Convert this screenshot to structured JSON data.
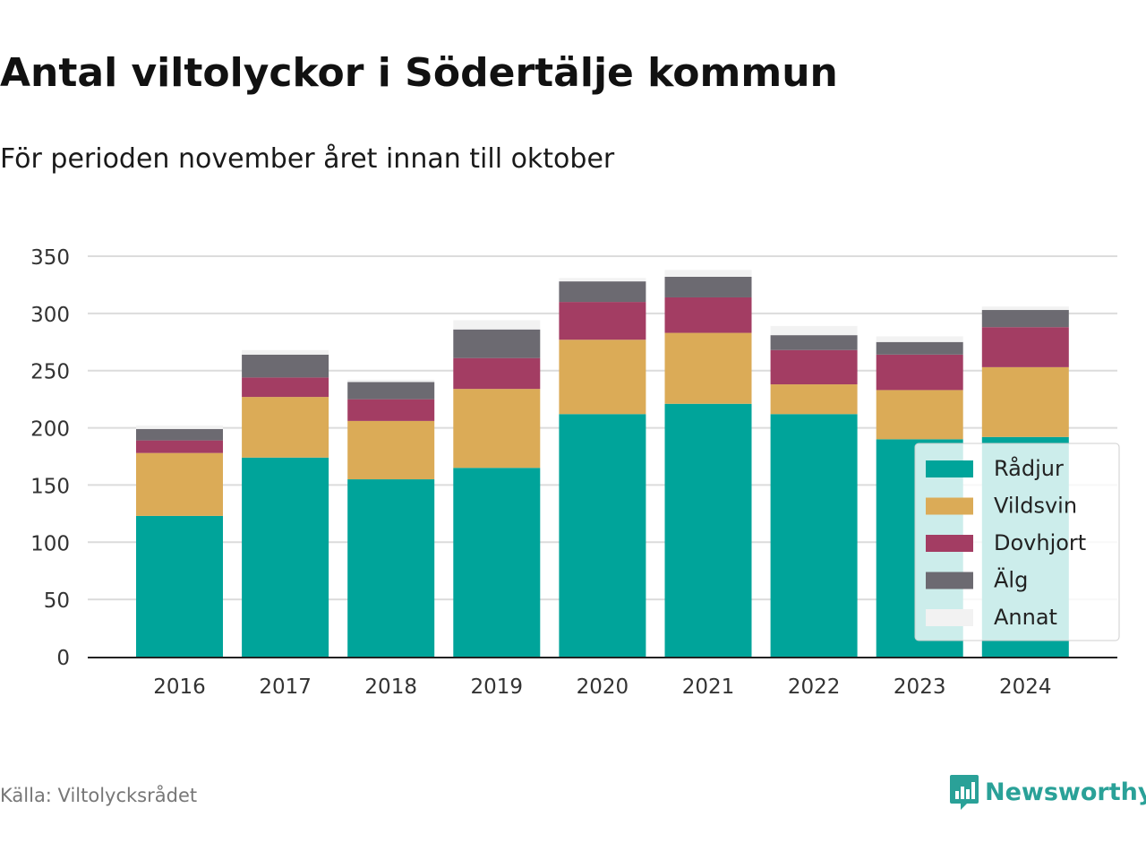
{
  "header": {
    "title": "Antal viltolyckor i Södertälje kommun",
    "subtitle": "För perioden november året innan till oktober"
  },
  "footer": {
    "source": "Källa: Viltolycksrådet",
    "brand": "Newsworthy",
    "brand_icon": "bar-chart-speech-bubble-icon"
  },
  "colors": {
    "radjur": "#00a49a",
    "vildsvin": "#dbab57",
    "dovhjort": "#a33d63",
    "alg": "#6c6a71",
    "annat": "#f2f2f2",
    "brand": "#2aa198"
  },
  "chart_data": {
    "type": "bar",
    "stacked": true,
    "title": "Antal viltolyckor i Södertälje kommun",
    "subtitle": "För perioden november året innan till oktober",
    "xlabel": "",
    "ylabel": "",
    "ylim": [
      0,
      350
    ],
    "yticks": [
      0,
      50,
      100,
      150,
      200,
      250,
      300,
      350
    ],
    "grid": true,
    "legend_position": "right",
    "categories": [
      "2016",
      "2017",
      "2018",
      "2019",
      "2020",
      "2021",
      "2022",
      "2023",
      "2024"
    ],
    "series": [
      {
        "name": "Rådjur",
        "color": "#00a49a",
        "values": [
          123,
          174,
          155,
          165,
          212,
          221,
          212,
          190,
          192
        ]
      },
      {
        "name": "Vildsvin",
        "color": "#dbab57",
        "values": [
          55,
          53,
          51,
          69,
          65,
          62,
          26,
          43,
          61
        ]
      },
      {
        "name": "Dovhjort",
        "color": "#a33d63",
        "values": [
          11,
          17,
          19,
          27,
          33,
          31,
          30,
          31,
          35
        ]
      },
      {
        "name": "Älg",
        "color": "#6c6a71",
        "values": [
          10,
          20,
          15,
          25,
          18,
          18,
          13,
          11,
          15
        ]
      },
      {
        "name": "Annat",
        "color": "#f2f2f2",
        "values": [
          3,
          4,
          2,
          8,
          3,
          6,
          8,
          5,
          3
        ]
      }
    ]
  }
}
